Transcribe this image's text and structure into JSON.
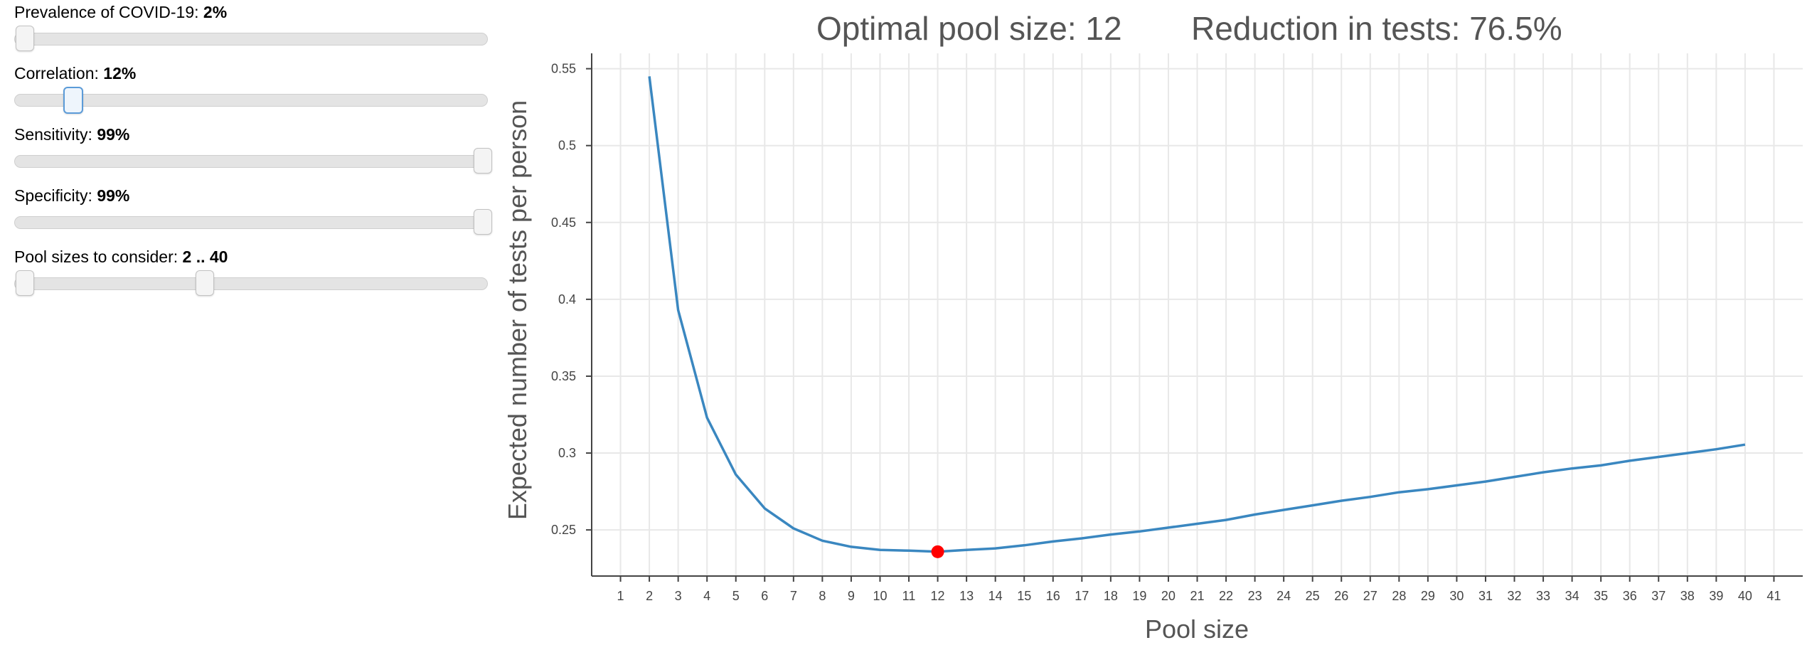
{
  "controls": {
    "prevalence": {
      "label": "Prevalence of COVID-19: ",
      "value": "2%",
      "level": 0.02
    },
    "correlation": {
      "label": "Correlation: ",
      "value": "12%",
      "level": 0.12
    },
    "sensitivity": {
      "label": "Sensitivity: ",
      "value": "99%",
      "level": 1.0
    },
    "specificity": {
      "label": "Specificity: ",
      "value": "99%",
      "level": 1.0
    },
    "pool_sizes": {
      "label": "Pool sizes to consider: ",
      "value": "2 .. 40",
      "min": 2,
      "max": 40,
      "range_min": 0,
      "range_max": 100
    }
  },
  "chart_data": {
    "type": "line",
    "title_left": "Optimal pool size: 12",
    "title_right": "Reduction in tests: 76.5%",
    "xlabel": "Pool size",
    "ylabel": "Expected number of tests per person",
    "xlim": [
      0,
      42
    ],
    "ylim": [
      0.22,
      0.56
    ],
    "x_ticks": [
      1,
      2,
      3,
      4,
      5,
      6,
      7,
      8,
      9,
      10,
      11,
      12,
      13,
      14,
      15,
      16,
      17,
      18,
      19,
      20,
      21,
      22,
      23,
      24,
      25,
      26,
      27,
      28,
      29,
      30,
      31,
      32,
      33,
      34,
      35,
      36,
      37,
      38,
      39,
      40,
      41
    ],
    "y_ticks": [
      0.25,
      0.3,
      0.35,
      0.4,
      0.45,
      0.5,
      0.55
    ],
    "y_tick_labels": [
      "0.25",
      "0.3",
      "0.35",
      "0.4",
      "0.45",
      "0.5",
      "0.55"
    ],
    "grid": true,
    "line_color": "#3a87c0",
    "highlight_color": "#ff0000",
    "series": [
      {
        "x": [
          2,
          3,
          4,
          5,
          6,
          7,
          8,
          9,
          10,
          11,
          12,
          13,
          14,
          15,
          16,
          17,
          18,
          19,
          20,
          21,
          22,
          23,
          24,
          25,
          26,
          27,
          28,
          29,
          30,
          31,
          32,
          33,
          34,
          35,
          36,
          37,
          38,
          39,
          40
        ],
        "y": [
          0.545,
          0.393,
          0.323,
          0.286,
          0.264,
          0.251,
          0.243,
          0.239,
          0.237,
          0.2365,
          0.2358,
          0.237,
          0.238,
          0.24,
          0.2425,
          0.2445,
          0.247,
          0.249,
          0.2515,
          0.254,
          0.2565,
          0.26,
          0.263,
          0.266,
          0.269,
          0.2715,
          0.2745,
          0.2765,
          0.279,
          0.2815,
          0.2845,
          0.2875,
          0.29,
          0.292,
          0.295,
          0.2975,
          0.3,
          0.3025,
          0.3055
        ]
      }
    ],
    "highlight": {
      "x": 12,
      "y": 0.2358
    }
  }
}
